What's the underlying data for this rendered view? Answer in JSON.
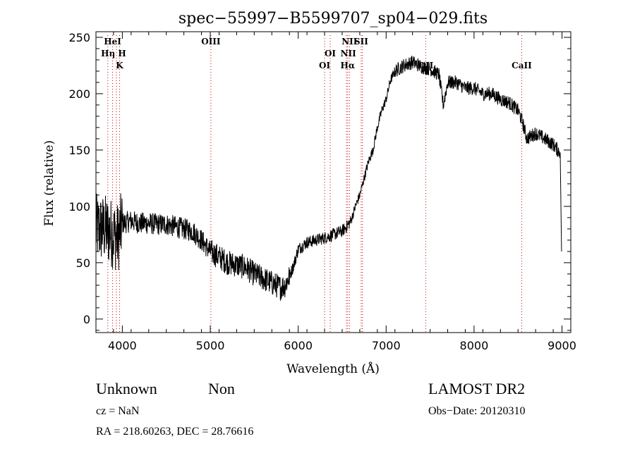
{
  "chart_data": {
    "type": "line",
    "title": "spec−55997−B5599707_sp04−029.fits",
    "xlabel": "Wavelength (Å)",
    "ylabel": "Flux (relative)",
    "xlim": [
      3700,
      9100
    ],
    "ylim": [
      -12,
      255
    ],
    "x_ticks": [
      4000,
      5000,
      6000,
      7000,
      8000,
      9000
    ],
    "y_ticks": [
      0,
      50,
      100,
      150,
      200,
      250
    ],
    "grid": false,
    "line_color": "#000000",
    "marker_color": "#cc0000",
    "series": [
      {
        "x": [
          3700,
          3800,
          3850,
          3900,
          3950,
          4000,
          4100,
          4200,
          4300,
          4400,
          4500,
          4600,
          4700,
          4800,
          4900,
          5000,
          5100,
          5200,
          5300,
          5400,
          5500,
          5600,
          5700,
          5750,
          5800,
          5850,
          5900,
          5950,
          6000,
          6100,
          6200,
          6300,
          6400,
          6500,
          6550,
          6600,
          6650,
          6700,
          6750,
          6800,
          6850,
          6900,
          6950,
          7000,
          7050,
          7100,
          7200,
          7300,
          7400,
          7500,
          7600,
          7650,
          7700,
          7800,
          7900,
          8000,
          8100,
          8200,
          8300,
          8400,
          8500,
          8550,
          8600,
          8700,
          8800,
          8900,
          8950,
          8980,
          9000
        ],
        "y": [
          80,
          80,
          78,
          75,
          72,
          85,
          87,
          85,
          85,
          84,
          84,
          82,
          80,
          78,
          70,
          60,
          55,
          50,
          48,
          46,
          40,
          36,
          32,
          30,
          28,
          30,
          38,
          48,
          62,
          68,
          70,
          72,
          75,
          78,
          82,
          87,
          100,
          110,
          125,
          140,
          150,
          170,
          185,
          195,
          212,
          220,
          225,
          228,
          224,
          222,
          217,
          190,
          210,
          210,
          205,
          205,
          200,
          200,
          195,
          192,
          185,
          175,
          160,
          165,
          160,
          155,
          150,
          148,
          140
        ]
      }
    ],
    "lines": [
      {
        "label": "HeI",
        "x": 3889
      },
      {
        "label": "Hη",
        "x": 3835
      },
      {
        "label": "H",
        "x": 3933
      },
      {
        "label": "K",
        "x": 3969
      },
      {
        "label": "OIII",
        "x": 5007
      },
      {
        "label": "OI",
        "x": 6300
      },
      {
        "label": "OI",
        "x": 6364
      },
      {
        "label": "NII",
        "x": 6548
      },
      {
        "label": "NII",
        "x": 6583
      },
      {
        "label": "Hα",
        "x": 6563
      },
      {
        "label": "SII",
        "x": 6716
      },
      {
        "label": "SII",
        "x": 6731
      },
      {
        "label": "OII",
        "x": 7450
      },
      {
        "label": "CaII",
        "x": 8542
      }
    ],
    "line_label_sets": [
      {
        "label": "HeI",
        "x": 3889
      },
      {
        "label": "Hη H",
        "x": 3900
      },
      {
        "label": "K",
        "x": 3969
      },
      {
        "label": "OIII",
        "x": 5007
      },
      {
        "label": "NII",
        "x": 6583
      },
      {
        "label": "SII",
        "x": 6716
      },
      {
        "label": "OI",
        "x": 6364
      },
      {
        "label": "NII",
        "x": 6570
      },
      {
        "label": "OI",
        "x": 6300
      },
      {
        "label": "Hα",
        "x": 6563
      },
      {
        "label": "OII",
        "x": 7450
      },
      {
        "label": "CaII",
        "x": 8542
      }
    ]
  },
  "info": {
    "class_text": "Unknown",
    "subclass_text": "Non",
    "cz_text": "cz = NaN",
    "coords_text": "RA = 218.60263, DEC =  28.76616",
    "survey_text": "LAMOST DR2",
    "obsdate_text": "Obs−Date: 20120310"
  }
}
